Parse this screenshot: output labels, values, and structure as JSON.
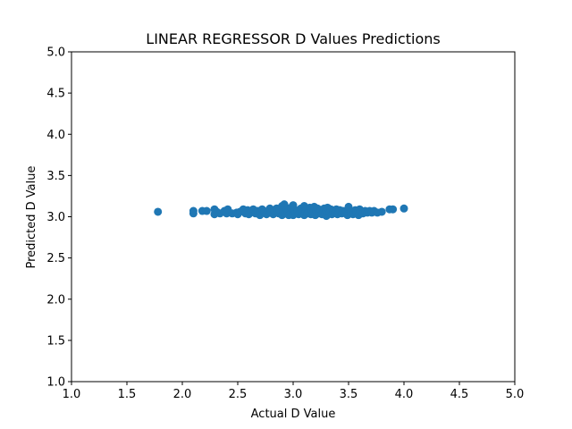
{
  "chart_data": {
    "type": "scatter",
    "title": "LINEAR REGRESSOR D Values Predictions",
    "xlabel": "Actual D Value",
    "ylabel": "Predicted D Value",
    "xlim": [
      1.0,
      5.0
    ],
    "ylim": [
      1.0,
      5.0
    ],
    "xticks": [
      "1.0",
      "1.5",
      "2.0",
      "2.5",
      "3.0",
      "3.5",
      "4.0",
      "4.5",
      "5.0"
    ],
    "yticks": [
      "1.0",
      "1.5",
      "2.0",
      "2.5",
      "3.0",
      "3.5",
      "4.0",
      "4.5",
      "5.0"
    ],
    "grid": false,
    "marker_color": "#1f77b4",
    "points": [
      [
        1.78,
        3.06
      ],
      [
        2.1,
        3.04
      ],
      [
        2.1,
        3.07
      ],
      [
        2.18,
        3.07
      ],
      [
        2.22,
        3.07
      ],
      [
        2.29,
        3.03
      ],
      [
        2.29,
        3.09
      ],
      [
        2.31,
        3.06
      ],
      [
        2.34,
        3.04
      ],
      [
        2.38,
        3.07
      ],
      [
        2.4,
        3.04
      ],
      [
        2.41,
        3.09
      ],
      [
        2.45,
        3.04
      ],
      [
        2.49,
        3.05
      ],
      [
        2.5,
        3.03
      ],
      [
        2.52,
        3.06
      ],
      [
        2.55,
        3.09
      ],
      [
        2.57,
        3.04
      ],
      [
        2.59,
        3.08
      ],
      [
        2.6,
        3.03
      ],
      [
        2.62,
        3.06
      ],
      [
        2.64,
        3.09
      ],
      [
        2.66,
        3.04
      ],
      [
        2.68,
        3.07
      ],
      [
        2.7,
        3.02
      ],
      [
        2.71,
        3.05
      ],
      [
        2.72,
        3.09
      ],
      [
        2.74,
        3.06
      ],
      [
        2.76,
        3.03
      ],
      [
        2.78,
        3.08
      ],
      [
        2.79,
        3.1
      ],
      [
        2.8,
        3.05
      ],
      [
        2.82,
        3.03
      ],
      [
        2.83,
        3.07
      ],
      [
        2.85,
        3.1
      ],
      [
        2.87,
        3.04
      ],
      [
        2.88,
        3.08
      ],
      [
        2.9,
        3.13
      ],
      [
        2.9,
        3.02
      ],
      [
        2.91,
        3.06
      ],
      [
        2.92,
        3.15
      ],
      [
        2.93,
        3.04
      ],
      [
        2.94,
        3.09
      ],
      [
        2.95,
        3.06
      ],
      [
        2.96,
        3.02
      ],
      [
        2.98,
        3.11
      ],
      [
        3.0,
        3.14
      ],
      [
        3.0,
        3.06
      ],
      [
        3.0,
        3.02
      ],
      [
        3.01,
        3.09
      ],
      [
        3.02,
        3.04
      ],
      [
        3.04,
        3.07
      ],
      [
        3.05,
        3.03
      ],
      [
        3.07,
        3.1
      ],
      [
        3.08,
        3.05
      ],
      [
        3.1,
        3.13
      ],
      [
        3.1,
        3.02
      ],
      [
        3.11,
        3.07
      ],
      [
        3.12,
        3.09
      ],
      [
        3.13,
        3.04
      ],
      [
        3.14,
        3.06
      ],
      [
        3.15,
        3.11
      ],
      [
        3.16,
        3.03
      ],
      [
        3.17,
        3.08
      ],
      [
        3.18,
        3.05
      ],
      [
        3.19,
        3.12
      ],
      [
        3.2,
        3.02
      ],
      [
        3.21,
        3.07
      ],
      [
        3.22,
        3.1
      ],
      [
        3.23,
        3.04
      ],
      [
        3.25,
        3.08
      ],
      [
        3.26,
        3.03
      ],
      [
        3.27,
        3.06
      ],
      [
        3.28,
        3.1
      ],
      [
        3.29,
        3.04
      ],
      [
        3.3,
        3.01
      ],
      [
        3.3,
        3.07
      ],
      [
        3.31,
        3.11
      ],
      [
        3.33,
        3.05
      ],
      [
        3.34,
        3.09
      ],
      [
        3.35,
        3.03
      ],
      [
        3.36,
        3.07
      ],
      [
        3.38,
        3.05
      ],
      [
        3.39,
        3.09
      ],
      [
        3.4,
        3.03
      ],
      [
        3.41,
        3.06
      ],
      [
        3.42,
        3.08
      ],
      [
        3.44,
        3.04
      ],
      [
        3.45,
        3.07
      ],
      [
        3.47,
        3.05
      ],
      [
        3.49,
        3.02
      ],
      [
        3.5,
        3.09
      ],
      [
        3.5,
        3.12
      ],
      [
        3.52,
        3.05
      ],
      [
        3.54,
        3.03
      ],
      [
        3.56,
        3.08
      ],
      [
        3.57,
        3.05
      ],
      [
        3.59,
        3.02
      ],
      [
        3.6,
        3.09
      ],
      [
        3.61,
        3.06
      ],
      [
        3.63,
        3.04
      ],
      [
        3.65,
        3.07
      ],
      [
        3.67,
        3.05
      ],
      [
        3.69,
        3.07
      ],
      [
        3.71,
        3.05
      ],
      [
        3.73,
        3.07
      ],
      [
        3.76,
        3.05
      ],
      [
        3.8,
        3.06
      ],
      [
        3.87,
        3.09
      ],
      [
        3.9,
        3.09
      ],
      [
        4.0,
        3.1
      ]
    ]
  }
}
